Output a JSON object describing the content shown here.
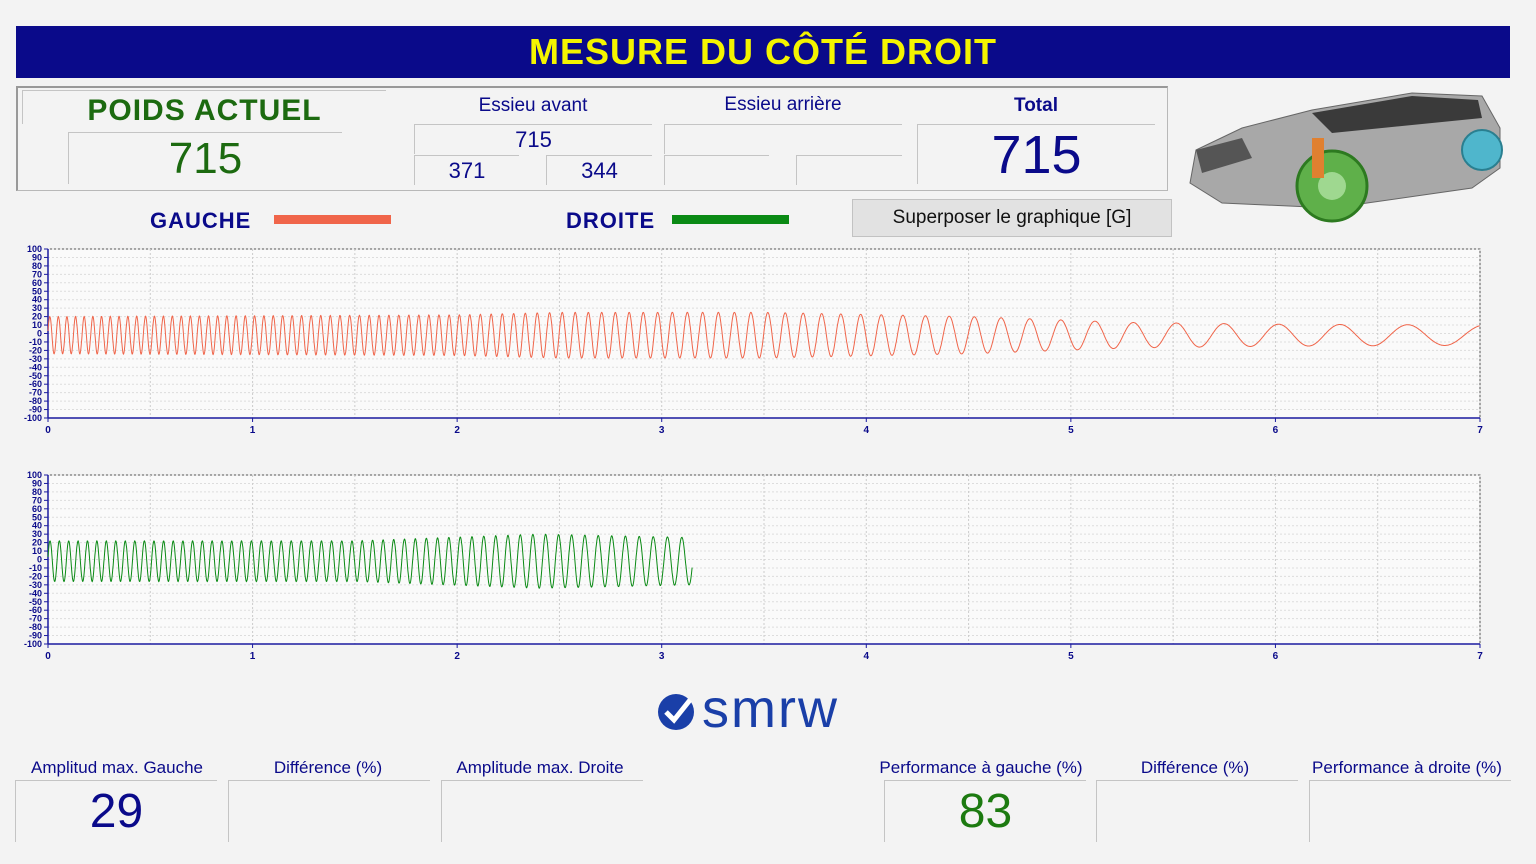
{
  "header": {
    "title": "MESURE DU CÔTÉ DROIT"
  },
  "weights": {
    "poids_label": "POIDS ACTUEL",
    "poids_value": "715",
    "front_axle_label": "Essieu avant",
    "front_axle_total": "715",
    "front_left": "371",
    "front_right": "344",
    "rear_axle_label": "Essieu arrière",
    "rear_axle_total": "",
    "rear_left": "",
    "rear_right": "",
    "total_label": "Total",
    "total_value": "715"
  },
  "legend": {
    "left_label": "GAUCHE",
    "left_color": "#f0654a",
    "right_label": "DROITE",
    "right_color": "#0a8a14"
  },
  "overlay_button": "Superposer le graphique [G]",
  "logo": {
    "text": "smrw",
    "color": "#1a3fa8"
  },
  "chart_data": [
    {
      "type": "line",
      "series": [
        {
          "name": "GAUCHE",
          "color": "#f0654a",
          "description_points": [
            {
              "x": 0.0,
              "amplitude": 22,
              "cycles_per_unit": 24
            },
            {
              "x": 2.0,
              "amplitude": 24,
              "cycles_per_unit": 20
            },
            {
              "x": 2.5,
              "amplitude": 27,
              "cycles_per_unit": 16
            },
            {
              "x": 3.5,
              "amplitude": 27,
              "cycles_per_unit": 12
            },
            {
              "x": 4.5,
              "amplitude": 22,
              "cycles_per_unit": 8
            },
            {
              "x": 5.3,
              "amplitude": 15,
              "cycles_per_unit": 5
            },
            {
              "x": 6.0,
              "amplitude": 13,
              "cycles_per_unit": 3.5
            },
            {
              "x": 7.0,
              "amplitude": 12,
              "cycles_per_unit": 2.5
            }
          ]
        }
      ],
      "xlim": [
        0,
        7
      ],
      "ylim": [
        -100,
        100
      ],
      "xticks": [
        0,
        1,
        2,
        3,
        4,
        5,
        6,
        7
      ],
      "yticks": [
        100,
        90,
        80,
        70,
        60,
        50,
        40,
        30,
        20,
        10,
        0,
        -10,
        -20,
        -30,
        -40,
        -50,
        -60,
        -70,
        -80,
        -90,
        -100
      ],
      "grid": true
    },
    {
      "type": "line",
      "series": [
        {
          "name": "DROITE",
          "color": "#0a8a14",
          "description_points": [
            {
              "x": 0.0,
              "amplitude": 24,
              "cycles_per_unit": 22
            },
            {
              "x": 1.5,
              "amplitude": 24,
              "cycles_per_unit": 20
            },
            {
              "x": 2.4,
              "amplitude": 32,
              "cycles_per_unit": 16
            },
            {
              "x": 3.15,
              "amplitude": 28,
              "cycles_per_unit": 14
            }
          ]
        }
      ],
      "xlim": [
        0,
        7
      ],
      "ylim": [
        -100,
        100
      ],
      "xticks": [
        0,
        1,
        2,
        3,
        4,
        5,
        6,
        7
      ],
      "yticks": [
        100,
        90,
        80,
        70,
        60,
        50,
        40,
        30,
        20,
        10,
        0,
        -10,
        -20,
        -30,
        -40,
        -50,
        -60,
        -70,
        -80,
        -90,
        -100
      ],
      "grid": true
    }
  ],
  "results": [
    {
      "label": "Amplitud max. Gauche",
      "value": "29",
      "color": "#0a0a8a"
    },
    {
      "label": "Différence (%)",
      "value": ""
    },
    {
      "label": "Amplitude max. Droite",
      "value": ""
    },
    {
      "label": "Performance à gauche (%)",
      "value": "83",
      "color": "#1c7a10"
    },
    {
      "label": "Différence (%)",
      "value": ""
    },
    {
      "label": "Performance à droite (%)",
      "value": ""
    }
  ]
}
